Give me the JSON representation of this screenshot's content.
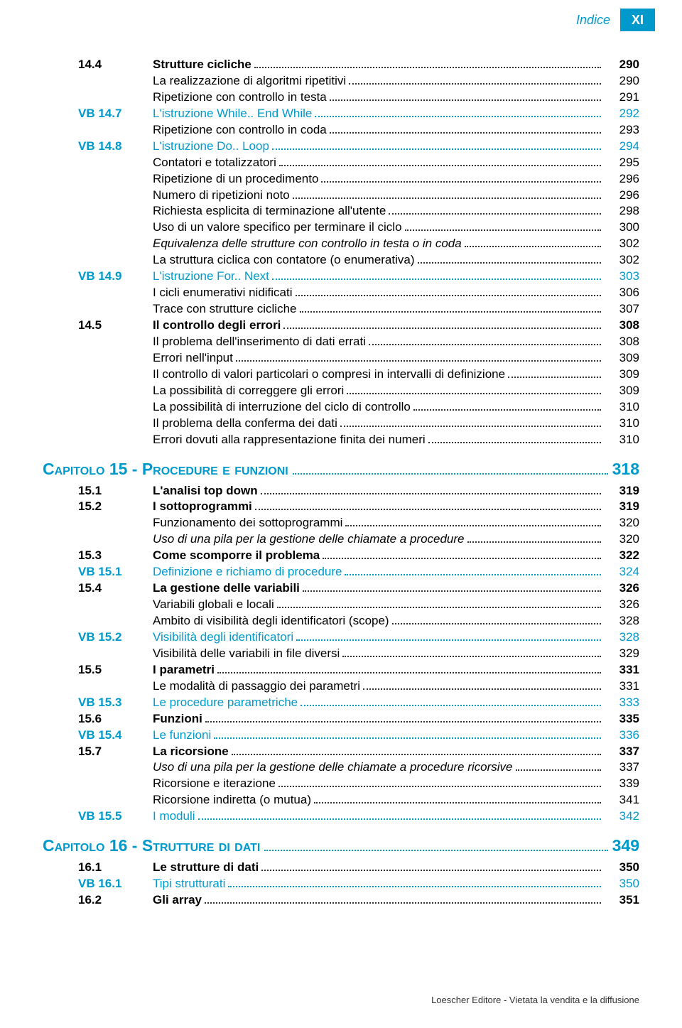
{
  "header": {
    "title": "Indice",
    "badge": "XI"
  },
  "colors": {
    "accent": "#0099cc",
    "text": "#000000",
    "background": "#ffffff"
  },
  "toc": [
    {
      "num": "14.4",
      "title": "Strutture cicliche",
      "page": "290",
      "bold": true
    },
    {
      "num": "",
      "title": "La realizzazione di algoritmi ripetitivi",
      "page": "290"
    },
    {
      "num": "",
      "title": "Ripetizione con controllo in testa",
      "page": "291"
    },
    {
      "num": "VB 14.7",
      "title": "L'istruzione While.. End While",
      "page": "292",
      "blue": true
    },
    {
      "num": "",
      "title": "Ripetizione con controllo in coda",
      "page": "293"
    },
    {
      "num": "VB 14.8",
      "title": "L'istruzione Do.. Loop",
      "page": "294",
      "blue": true
    },
    {
      "num": "",
      "title": "Contatori e totalizzatori",
      "page": "295"
    },
    {
      "num": "",
      "title": "Ripetizione di un procedimento",
      "page": "296"
    },
    {
      "num": "",
      "title": "Numero di ripetizioni noto",
      "page": "296"
    },
    {
      "num": "",
      "title": "Richiesta esplicita di terminazione all'utente",
      "page": "298"
    },
    {
      "num": "",
      "title": "Uso di un valore specifico per terminare il ciclo",
      "page": "300"
    },
    {
      "num": "",
      "title": "Equivalenza delle strutture con controllo in testa o in coda",
      "page": "302",
      "italic": true
    },
    {
      "num": "",
      "title": "La struttura ciclica con contatore (o enumerativa)",
      "page": "302"
    },
    {
      "num": "VB 14.9",
      "title": "L'istruzione For.. Next",
      "page": "303",
      "blue": true
    },
    {
      "num": "",
      "title": "I cicli enumerativi nidificati",
      "page": "306"
    },
    {
      "num": "",
      "title": "Trace con strutture cicliche",
      "page": "307"
    },
    {
      "num": "14.5",
      "title": "Il controllo degli errori",
      "page": "308",
      "bold": true
    },
    {
      "num": "",
      "title": "Il problema dell'inserimento di dati errati",
      "page": "308"
    },
    {
      "num": "",
      "title": "Errori nell'input",
      "page": "309"
    },
    {
      "num": "",
      "title": "Il controllo di valori particolari o compresi in intervalli di definizione",
      "page": "309"
    },
    {
      "num": "",
      "title": "La possibilità di correggere gli errori",
      "page": "309"
    },
    {
      "num": "",
      "title": "La possibilità di interruzione del ciclo di controllo",
      "page": "310"
    },
    {
      "num": "",
      "title": "Il problema della conferma dei dati",
      "page": "310"
    },
    {
      "num": "",
      "title": "Errori dovuti alla rappresentazione finita dei numeri",
      "page": "310"
    }
  ],
  "chapter15": {
    "label": "Capitolo 15 - Procedure e funzioni",
    "page": "318"
  },
  "toc15": [
    {
      "num": "15.1",
      "title": "L'analisi top down",
      "page": "319",
      "bold": true
    },
    {
      "num": "15.2",
      "title": "I sottoprogrammi",
      "page": "319",
      "bold": true
    },
    {
      "num": "",
      "title": "Funzionamento dei sottoprogrammi",
      "page": "320"
    },
    {
      "num": "",
      "title": "Uso di una pila per la gestione delle chiamate a procedure",
      "page": "320",
      "italic": true
    },
    {
      "num": "15.3",
      "title": "Come scomporre il problema",
      "page": "322",
      "bold": true
    },
    {
      "num": "VB 15.1",
      "title": "Definizione e richiamo di procedure",
      "page": "324",
      "blue": true
    },
    {
      "num": "15.4",
      "title": "La gestione delle variabili",
      "page": "326",
      "bold": true
    },
    {
      "num": "",
      "title": "Variabili globali e locali",
      "page": "326"
    },
    {
      "num": "",
      "title": "Ambito di visibilità degli identificatori (scope)",
      "page": "328"
    },
    {
      "num": "VB 15.2",
      "title": "Visibilità degli identificatori",
      "page": "328",
      "blue": true
    },
    {
      "num": "",
      "title": "Visibilità delle variabili in file diversi",
      "page": "329"
    },
    {
      "num": "15.5",
      "title": "I parametri",
      "page": "331",
      "bold": true
    },
    {
      "num": "",
      "title": "Le modalità di passaggio dei parametri",
      "page": "331"
    },
    {
      "num": "VB 15.3",
      "title": "Le procedure parametriche",
      "page": "333",
      "blue": true
    },
    {
      "num": "15.6",
      "title": "Funzioni",
      "page": "335",
      "bold": true
    },
    {
      "num": "VB 15.4",
      "title": "Le funzioni",
      "page": "336",
      "blue": true
    },
    {
      "num": "15.7",
      "title": "La ricorsione",
      "page": "337",
      "bold": true
    },
    {
      "num": "",
      "title": "Uso di una pila per la gestione delle chiamate a procedure ricorsive",
      "page": "337",
      "italic": true
    },
    {
      "num": "",
      "title": "Ricorsione e iterazione",
      "page": "339"
    },
    {
      "num": "",
      "title": "Ricorsione indiretta (o mutua)",
      "page": "341"
    },
    {
      "num": "VB 15.5",
      "title": "I moduli",
      "page": "342",
      "blue": true
    }
  ],
  "chapter16": {
    "label": "Capitolo 16 - Strutture di dati",
    "page": "349"
  },
  "toc16": [
    {
      "num": "16.1",
      "title": "Le strutture di dati",
      "page": "350",
      "bold": true
    },
    {
      "num": "VB 16.1",
      "title": "Tipi strutturati",
      "page": "350",
      "blue": true
    },
    {
      "num": "16.2",
      "title": "Gli array",
      "page": "351",
      "bold": true
    }
  ],
  "footer": "Loescher Editore - Vietata la vendita e la diffusione"
}
